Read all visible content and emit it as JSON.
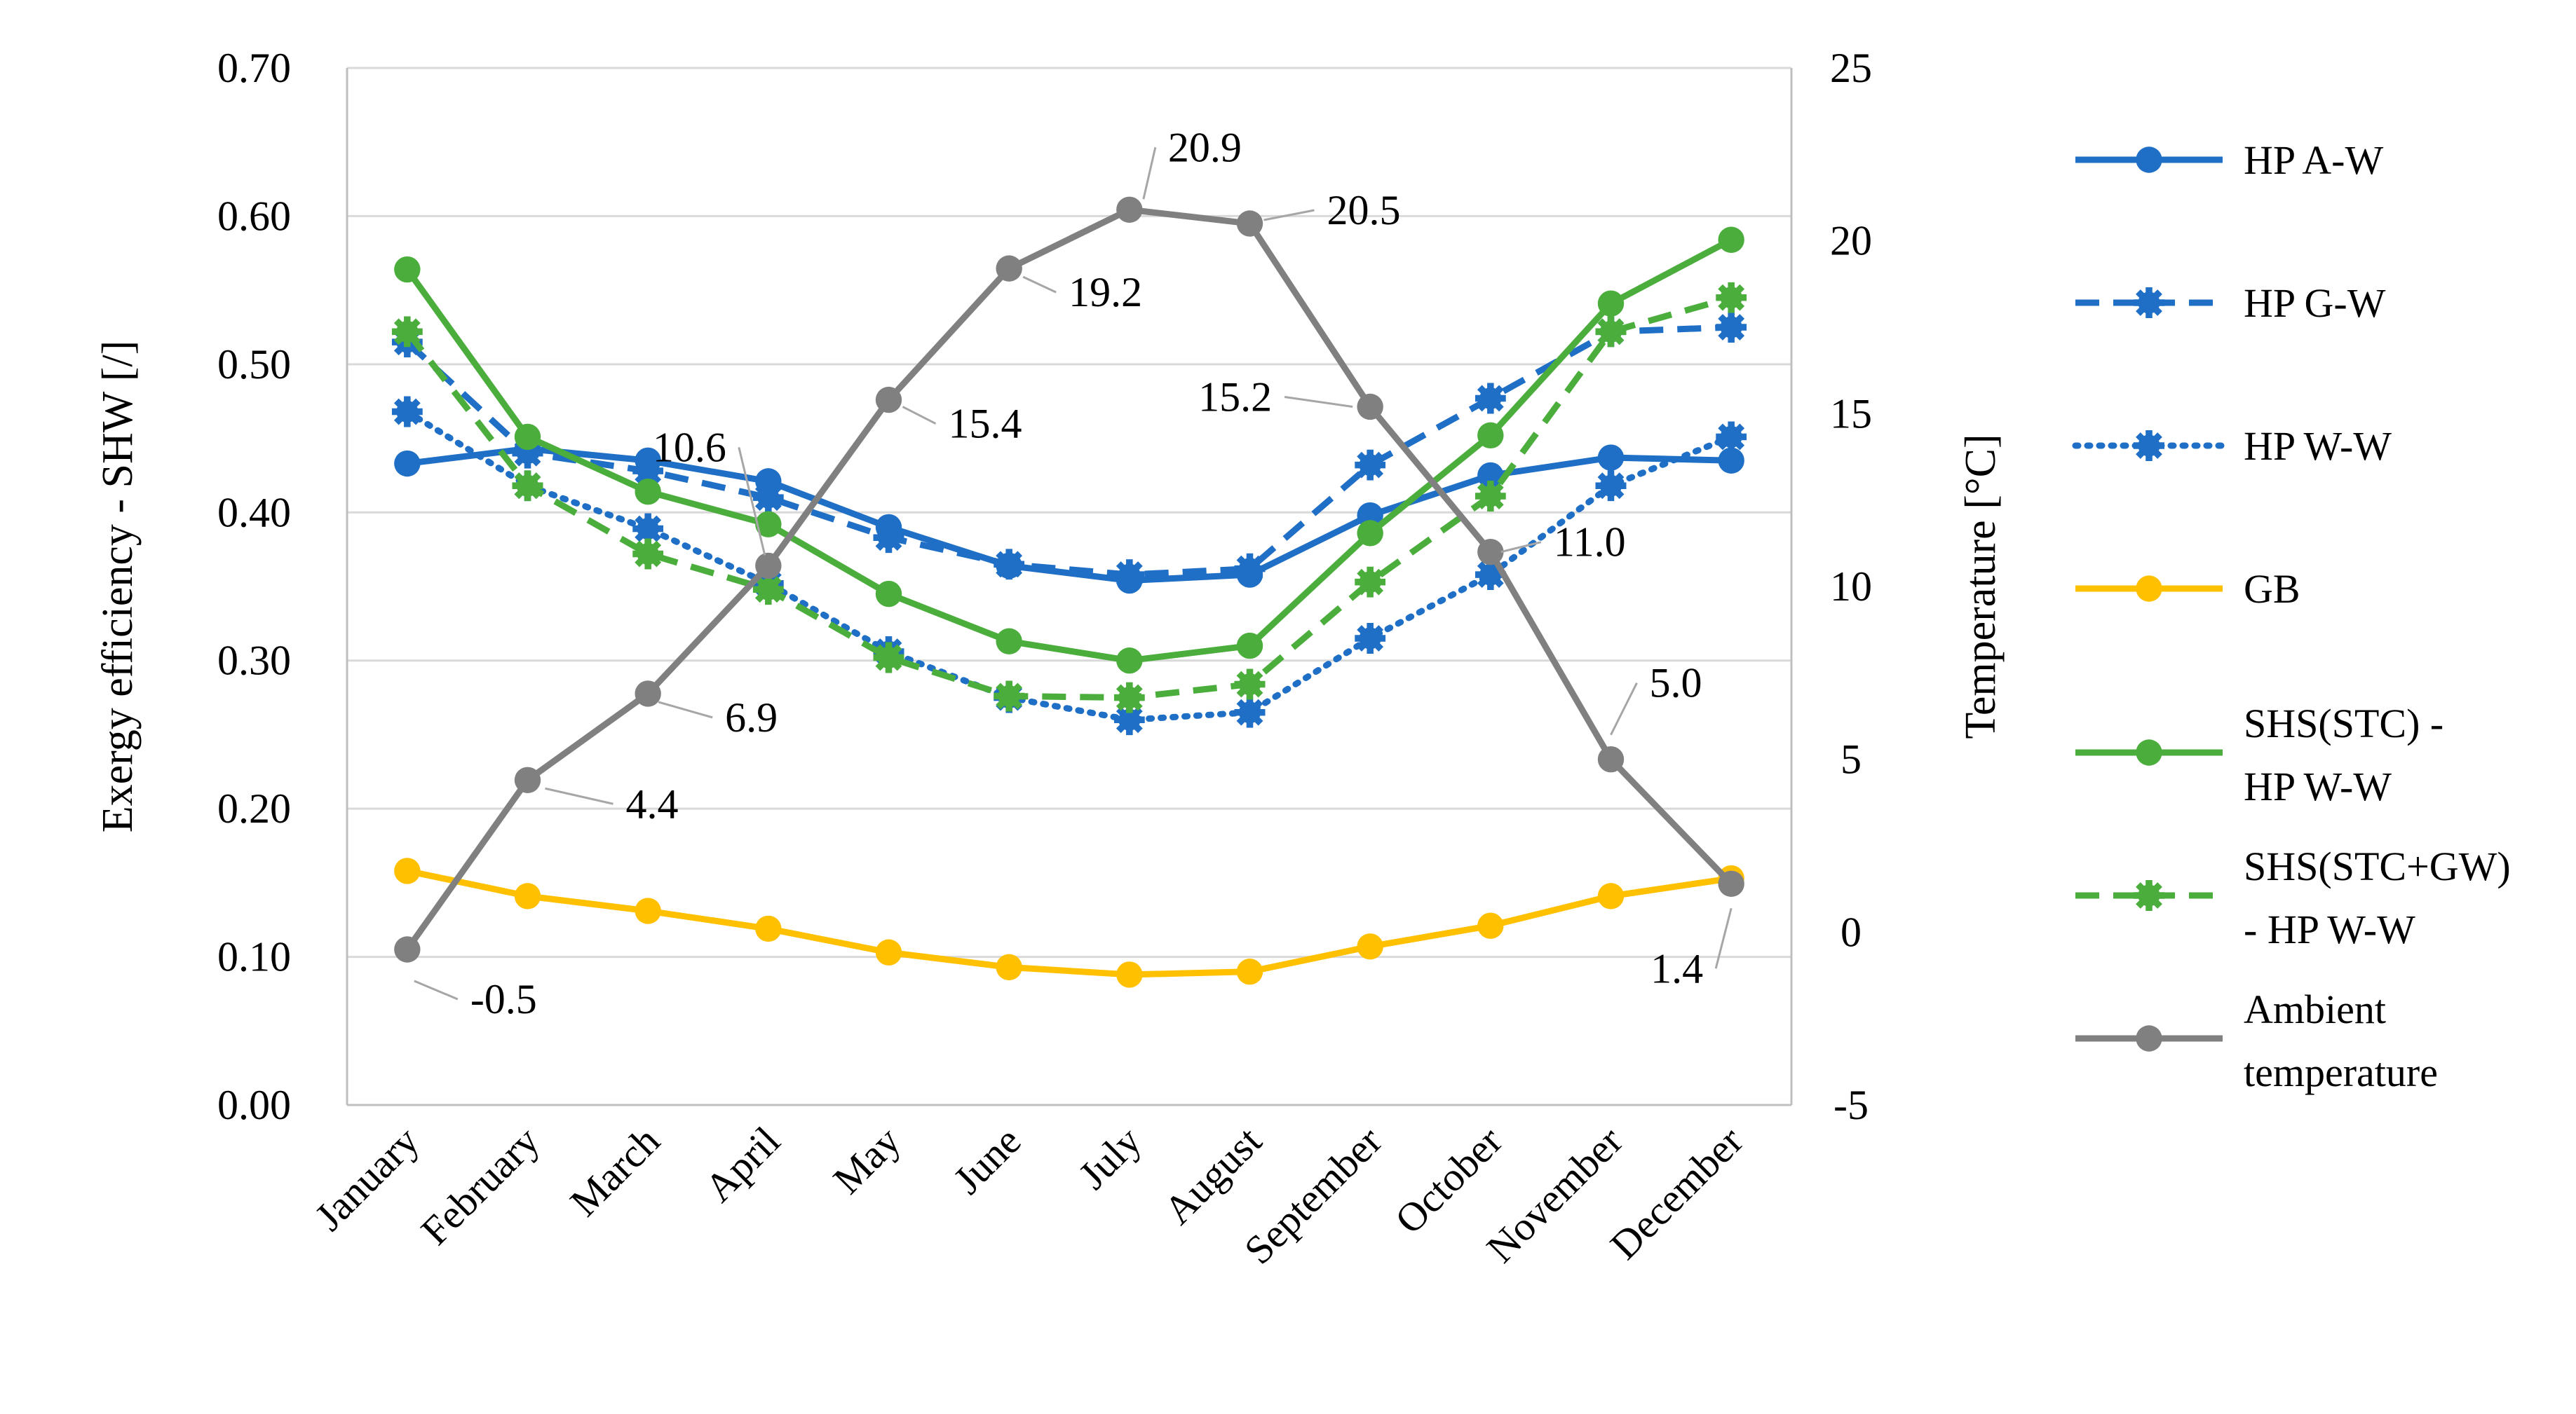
{
  "chart_data": {
    "type": "line",
    "title": "",
    "categories": [
      "January",
      "February",
      "March",
      "April",
      "May",
      "June",
      "July",
      "August",
      "September",
      "October",
      "November",
      "December"
    ],
    "ylabel": "Exergy efficiency - SHW [/]",
    "y2label": "Temperature [°C]",
    "ylim": [
      0,
      0.7
    ],
    "y2lim": [
      -5,
      25
    ],
    "yticks": [
      "0.00",
      "0.10",
      "0.20",
      "0.30",
      "0.40",
      "0.50",
      "0.60",
      "0.70"
    ],
    "y2ticks": [
      "-5",
      "0",
      "5",
      "10",
      "15",
      "20",
      "25"
    ],
    "grid": true,
    "legend_position": "right",
    "series": [
      {
        "name": "HP A-W",
        "color": "#1F6FC6",
        "dash": "solid",
        "marker": "circle",
        "axis": "left",
        "values": [
          0.433,
          0.443,
          0.435,
          0.421,
          0.39,
          0.364,
          0.354,
          0.358,
          0.398,
          0.425,
          0.437,
          0.435
        ]
      },
      {
        "name": "HP G-W",
        "color": "#1F6FC6",
        "dash": "dash",
        "marker": "gear",
        "axis": "left",
        "values": [
          0.515,
          0.44,
          0.428,
          0.41,
          0.383,
          0.365,
          0.358,
          0.362,
          0.432,
          0.477,
          0.522,
          0.525
        ]
      },
      {
        "name": "HP W-W",
        "color": "#1F6FC6",
        "dash": "dot",
        "marker": "gear",
        "axis": "left",
        "values": [
          0.468,
          0.418,
          0.389,
          0.352,
          0.306,
          0.275,
          0.26,
          0.265,
          0.315,
          0.358,
          0.418,
          0.451
        ]
      },
      {
        "name": "GB",
        "color": "#FFC000",
        "dash": "solid",
        "marker": "circle",
        "axis": "left",
        "values": [
          0.158,
          0.141,
          0.131,
          0.119,
          0.103,
          0.093,
          0.088,
          0.09,
          0.107,
          0.121,
          0.141,
          0.153
        ]
      },
      {
        "name": "SHS(STC) - HP W-W",
        "legend_lines": [
          "SHS(STC) -",
          "HP W-W"
        ],
        "color": "#4BAE3C",
        "dash": "solid",
        "marker": "circle",
        "axis": "left",
        "values": [
          0.564,
          0.451,
          0.414,
          0.392,
          0.345,
          0.313,
          0.3,
          0.31,
          0.386,
          0.452,
          0.541,
          0.584
        ]
      },
      {
        "name": "SHS(STC+GW) - HP W-W",
        "legend_lines": [
          "SHS(STC+GW)",
          "- HP W-W"
        ],
        "color": "#4BAE3C",
        "dash": "dash",
        "marker": "gear",
        "axis": "left",
        "values": [
          0.522,
          0.418,
          0.372,
          0.348,
          0.302,
          0.276,
          0.275,
          0.284,
          0.353,
          0.411,
          0.522,
          0.545
        ]
      },
      {
        "name": "Ambient temperature",
        "legend_lines": [
          "Ambient",
          "temperature"
        ],
        "color": "#808080",
        "dash": "solid",
        "marker": "circle",
        "axis": "right",
        "values": [
          -0.5,
          4.4,
          6.9,
          10.6,
          15.4,
          19.2,
          20.9,
          20.5,
          15.2,
          11.0,
          5.0,
          1.4
        ],
        "labels": [
          "-0.5",
          "4.4",
          "6.9",
          "10.6",
          "15.4",
          "19.2",
          "20.9",
          "20.5",
          "15.2",
          "11.0",
          "5.0",
          "1.4"
        ]
      }
    ]
  }
}
